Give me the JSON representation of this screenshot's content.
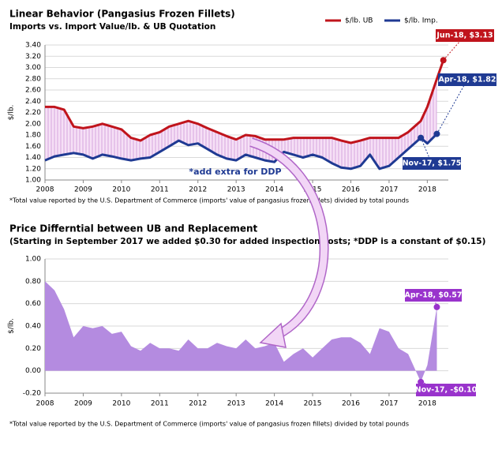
{
  "chart_data": [
    {
      "type": "line",
      "title": "Linear Behavior (Pangasius Frozen Fillets)",
      "subtitle": "Imports vs. Import Value/lb. & UB Quotation",
      "ylabel": "$/lb.",
      "x": [
        2008,
        2008.25,
        2008.5,
        2008.75,
        2009,
        2009.25,
        2009.5,
        2009.75,
        2010,
        2010.25,
        2010.5,
        2010.75,
        2011,
        2011.25,
        2011.5,
        2011.75,
        2012,
        2012.25,
        2012.5,
        2012.75,
        2013,
        2013.25,
        2013.5,
        2013.75,
        2014,
        2014.25,
        2014.5,
        2014.75,
        2015,
        2015.25,
        2015.5,
        2015.75,
        2016,
        2016.25,
        2016.5,
        2016.75,
        2017,
        2017.25,
        2017.5,
        2017.83,
        2018,
        2018.25,
        2018.42
      ],
      "series": [
        {
          "name": "$/lb. UB",
          "color": "#c0141c",
          "values": [
            2.3,
            2.3,
            2.25,
            1.95,
            1.92,
            1.95,
            2.0,
            1.95,
            1.9,
            1.75,
            1.7,
            1.8,
            1.85,
            1.95,
            2.0,
            2.05,
            2.0,
            1.92,
            1.85,
            1.78,
            1.72,
            1.8,
            1.78,
            1.72,
            1.72,
            1.72,
            1.75,
            1.75,
            1.75,
            1.75,
            1.75,
            1.7,
            1.66,
            1.7,
            1.75,
            1.75,
            1.75,
            1.75,
            1.85,
            2.05,
            2.3,
            2.8,
            3.13
          ]
        },
        {
          "name": "$/lb. Imp.",
          "color": "#1f3a93",
          "values": [
            1.35,
            1.42,
            1.45,
            1.48,
            1.45,
            1.38,
            1.45,
            1.42,
            1.38,
            1.35,
            1.38,
            1.4,
            1.5,
            1.6,
            1.7,
            1.62,
            1.65,
            1.55,
            1.45,
            1.38,
            1.35,
            1.45,
            1.4,
            1.35,
            1.32,
            1.5,
            1.45,
            1.4,
            1.45,
            1.4,
            1.3,
            1.22,
            1.2,
            1.25,
            1.45,
            1.2,
            1.25,
            1.4,
            1.55,
            1.75,
            1.65,
            1.82,
            null
          ]
        }
      ],
      "xlim": [
        2008,
        2018.55
      ],
      "xticks": [
        2008,
        2009,
        2010,
        2011,
        2012,
        2013,
        2014,
        2015,
        2016,
        2017,
        2018
      ],
      "ylim": [
        1,
        3.4
      ],
      "yticks": [
        {
          "value": 1,
          "label": "1.00"
        },
        {
          "value": 1.2,
          "label": "1.20"
        },
        {
          "value": 1.4,
          "label": "1.40"
        },
        {
          "value": 1.6,
          "label": "1.60"
        },
        {
          "value": 1.8,
          "label": "1.80"
        },
        {
          "value": 2,
          "label": "2.00"
        },
        {
          "value": 2.2,
          "label": "2.20"
        },
        {
          "value": 2.4,
          "label": "2.40"
        },
        {
          "value": 2.6,
          "label": "2.60"
        },
        {
          "value": 2.8,
          "label": "2.80"
        },
        {
          "value": 3,
          "label": "3.00"
        },
        {
          "value": 3.2,
          "label": "3.20"
        },
        {
          "value": 3.4,
          "label": "3.40"
        }
      ],
      "grid": true,
      "annotations": [
        "Jun-18,  $3.13",
        "Apr-18, $1.82",
        "Nov-17, $1.75",
        "*add extra for DDP"
      ],
      "note": "*Total value reported by the U.S. Department of Commerce (imports' value of pangasius frozen fillets) divided by total pounds"
    },
    {
      "type": "area",
      "title": "Price Differntial between UB and Replacement",
      "subtitle": "(Starting in September 2017 we added $0.30 for added inspection costs; *DDP is a constant of $0.15)",
      "ylabel": "$/lb.",
      "x": [
        2008,
        2008.25,
        2008.5,
        2008.75,
        2009,
        2009.25,
        2009.5,
        2009.75,
        2010,
        2010.25,
        2010.5,
        2010.75,
        2011,
        2011.25,
        2011.5,
        2011.75,
        2012,
        2012.25,
        2012.5,
        2012.75,
        2013,
        2013.25,
        2013.5,
        2013.75,
        2014,
        2014.25,
        2014.5,
        2014.75,
        2015,
        2015.25,
        2015.5,
        2015.75,
        2016,
        2016.25,
        2016.5,
        2016.75,
        2017,
        2017.25,
        2017.5,
        2017.83,
        2018,
        2018.25
      ],
      "values": [
        0.8,
        0.72,
        0.55,
        0.3,
        0.4,
        0.38,
        0.4,
        0.33,
        0.35,
        0.22,
        0.18,
        0.25,
        0.2,
        0.2,
        0.18,
        0.28,
        0.2,
        0.2,
        0.25,
        0.22,
        0.2,
        0.28,
        0.2,
        0.22,
        0.25,
        0.08,
        0.15,
        0.2,
        0.12,
        0.2,
        0.28,
        0.3,
        0.3,
        0.25,
        0.15,
        0.38,
        0.35,
        0.2,
        0.15,
        -0.1,
        0.05,
        0.57
      ],
      "color": "#b48be0",
      "xlim": [
        2008,
        2018.55
      ],
      "xticks": [
        2008,
        2009,
        2010,
        2011,
        2012,
        2013,
        2014,
        2015,
        2016,
        2017,
        2018
      ],
      "ylim": [
        -0.2,
        1
      ],
      "yticks": [
        {
          "value": -0.2,
          "label": "-0.20"
        },
        {
          "value": 0,
          "label": "0.00"
        },
        {
          "value": 0.2,
          "label": "0.20"
        },
        {
          "value": 0.4,
          "label": "0.40"
        },
        {
          "value": 0.6,
          "label": "0.60"
        },
        {
          "value": 0.8,
          "label": "0.80"
        },
        {
          "value": 1,
          "label": "1.00"
        }
      ],
      "grid": true,
      "annotations": [
        "Apr-18, $0.57",
        "Nov-17, -$0.10"
      ],
      "note": "*Total value reported by the U.S. Department of Commerce (imports' value of pangasius frozen fillets) divided by total pounds"
    }
  ]
}
